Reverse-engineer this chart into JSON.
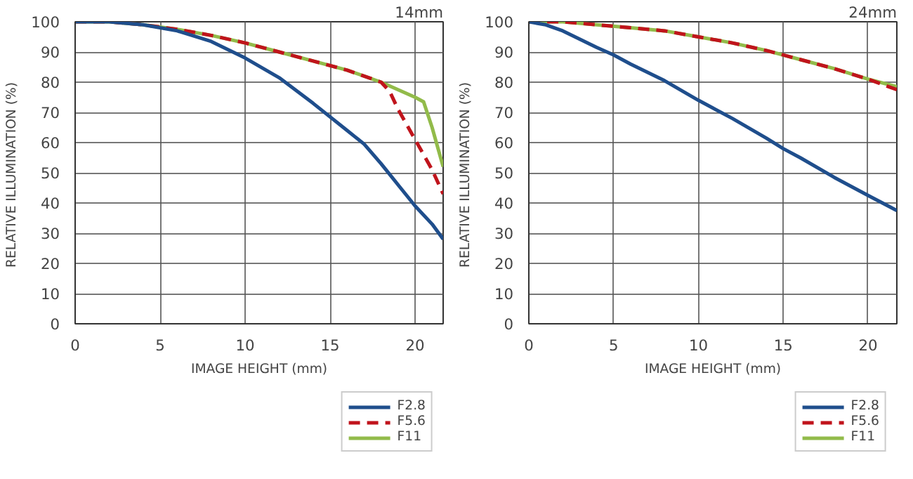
{
  "chart_data": [
    {
      "type": "line",
      "title": "14mm",
      "xlabel": "IMAGE HEIGHT (mm)",
      "ylabel": "RELATIVE ILLUMINATION  (%)",
      "xlim": [
        0,
        21.65
      ],
      "ylim": [
        0,
        100
      ],
      "xticks": [
        0,
        5,
        10,
        15,
        20
      ],
      "yticks": [
        0,
        10,
        20,
        30,
        40,
        50,
        60,
        70,
        80,
        90,
        100
      ],
      "grid": true,
      "legend": "bottom right",
      "series": [
        {
          "name": "F2.8",
          "color": "#1f4e8c",
          "line_style": "solid",
          "x": [
            0,
            2,
            4,
            6,
            8,
            10,
            12,
            14,
            16,
            17,
            18,
            19,
            20,
            21,
            21.65
          ],
          "values": [
            100,
            100,
            99,
            97,
            93.5,
            88,
            81.5,
            73,
            64,
            59.5,
            53,
            46,
            39,
            33,
            28
          ]
        },
        {
          "name": "F5.6",
          "color": "#c0141c",
          "line_style": "dashed",
          "x": [
            0,
            2,
            4,
            6,
            8,
            10,
            12,
            14,
            16,
            18,
            18.5,
            19,
            20,
            21,
            21.65
          ],
          "values": [
            100,
            100,
            99,
            97.5,
            95.5,
            93,
            90,
            87,
            84,
            80,
            77,
            71,
            61,
            51,
            43
          ]
        },
        {
          "name": "F11",
          "color": "#92bb4a",
          "line_style": "solid",
          "x": [
            0,
            2,
            4,
            6,
            8,
            10,
            12,
            14,
            16,
            18,
            19,
            20,
            20.5,
            21,
            21.65
          ],
          "values": [
            100,
            100,
            99,
            97.5,
            95.5,
            93,
            90,
            87,
            84,
            80,
            77.5,
            75,
            73.5,
            65,
            52
          ]
        }
      ]
    },
    {
      "type": "line",
      "title": "24mm",
      "xlabel": "IMAGE HEIGHT (mm)",
      "ylabel": "RELATIVE ILLUMINATION  (%)",
      "xlim": [
        0,
        21.7
      ],
      "ylim": [
        0,
        100
      ],
      "xticks": [
        0,
        5,
        10,
        15,
        20
      ],
      "yticks": [
        0,
        10,
        20,
        30,
        40,
        50,
        60,
        70,
        80,
        90,
        100
      ],
      "grid": true,
      "legend": "bottom right",
      "series": [
        {
          "name": "F2.8",
          "color": "#1f4e8c",
          "line_style": "solid",
          "x": [
            0,
            1,
            2,
            4,
            5,
            6,
            8,
            10,
            12,
            14,
            15,
            16,
            18,
            20,
            21.7
          ],
          "values": [
            100,
            99,
            97,
            91.5,
            89,
            86,
            80.5,
            74,
            68,
            61.5,
            58,
            55,
            48.5,
            42.5,
            37.5
          ]
        },
        {
          "name": "F5.6",
          "color": "#c0141c",
          "line_style": "dashed",
          "x": [
            0,
            2,
            4,
            6,
            8,
            10,
            12,
            14,
            16,
            18,
            20,
            21.7
          ],
          "values": [
            100,
            100,
            99,
            98,
            97,
            95,
            93,
            90.5,
            87.5,
            84.5,
            81,
            77.5
          ]
        },
        {
          "name": "F11",
          "color": "#92bb4a",
          "line_style": "solid",
          "x": [
            0,
            2,
            4,
            6,
            8,
            10,
            12,
            14,
            16,
            18,
            20,
            21.7
          ],
          "values": [
            100,
            100,
            99,
            98,
            97,
            95,
            93,
            90.5,
            87.5,
            84.5,
            81,
            78.5
          ]
        }
      ]
    }
  ]
}
